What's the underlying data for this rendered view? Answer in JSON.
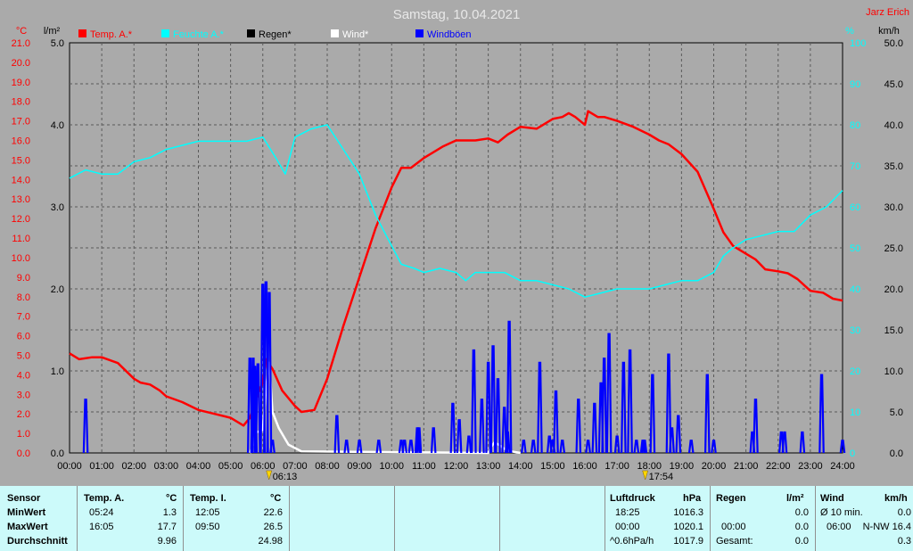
{
  "chart_data": {
    "type": "line",
    "title": "Samstag, 10.04.2021",
    "author": "Jarz Erich",
    "left_units": [
      "°C",
      "l/m²"
    ],
    "right_units": [
      "%",
      "km/h"
    ],
    "axes": {
      "temp": {
        "unit": "°C",
        "min": 0,
        "max": 21,
        "ticks": [
          "0.0",
          "1.0",
          "2.0",
          "3.0",
          "4.0",
          "5.0",
          "6.0",
          "7.0",
          "8.0",
          "9.0",
          "10.0",
          "11.0",
          "12.0",
          "13.0",
          "14.0",
          "15.0",
          "16.0",
          "17.0",
          "18.0",
          "19.0",
          "20.0",
          "21.0"
        ]
      },
      "rain": {
        "unit": "l/m²",
        "min": 0,
        "max": 5,
        "ticks": [
          "0.0",
          "1.0",
          "2.0",
          "3.0",
          "4.0",
          "5.0"
        ]
      },
      "humidity": {
        "unit": "%",
        "min": 0,
        "max": 100,
        "ticks": [
          "0",
          "10",
          "20",
          "30",
          "40",
          "50",
          "60",
          "70",
          "80",
          "90",
          "100"
        ]
      },
      "wind": {
        "unit": "km/h",
        "min": 0,
        "max": 50,
        "ticks": [
          "0.0",
          "5.0",
          "10.0",
          "15.0",
          "20.0",
          "25.0",
          "30.0",
          "35.0",
          "40.0",
          "45.0",
          "50.0"
        ]
      }
    },
    "x_ticks": [
      "00:00",
      "01:00",
      "02:00",
      "03:00",
      "04:00",
      "05:00",
      "06:00",
      "07:00",
      "08:00",
      "09:00",
      "10:00",
      "11:00",
      "12:00",
      "13:00",
      "14:00",
      "15:00",
      "16:00",
      "17:00",
      "18:00",
      "19:00",
      "20:00",
      "21:00",
      "22:00",
      "23:00",
      "24:00"
    ],
    "x_range_hours": [
      0,
      24
    ],
    "grid": true,
    "legend": [
      {
        "label": "Temp. A.*",
        "color": "#ff0000"
      },
      {
        "label": "Feuchte A.*",
        "color": "#00ffff"
      },
      {
        "label": "Regen*",
        "color": "#000000"
      },
      {
        "label": "Wind*",
        "color": "#ffffff"
      },
      {
        "label": "Windböen",
        "color": "#0000ff"
      }
    ],
    "annotations": {
      "sunrise": "06:13",
      "sunset": "17:54",
      "sunrise_hour": 6.22,
      "sunset_hour": 17.9
    },
    "series": [
      {
        "name": "Temp. A.*",
        "axis": "temp",
        "color": "#ff0000",
        "x": [
          0,
          0.3,
          0.7,
          1.0,
          1.5,
          2.0,
          2.2,
          2.5,
          2.8,
          3.0,
          3.5,
          4.0,
          4.5,
          5.0,
          5.4,
          5.6,
          5.8,
          6.0,
          6.1,
          6.3,
          6.6,
          7.0,
          7.2,
          7.6,
          8.0,
          8.5,
          9.0,
          9.5,
          10.0,
          10.3,
          10.6,
          11.0,
          11.3,
          11.6,
          12.0,
          12.3,
          12.6,
          13.0,
          13.3,
          13.6,
          14.0,
          14.5,
          15.0,
          15.3,
          15.5,
          15.7,
          16.0,
          16.1,
          16.4,
          16.6,
          17.0,
          17.5,
          18.0,
          18.3,
          18.6,
          19.0,
          19.5,
          20.0,
          20.3,
          20.6,
          21.0,
          21.3,
          21.6,
          22.0,
          22.3,
          22.6,
          23.0,
          23.4,
          23.7,
          24.0
        ],
        "y": [
          5.1,
          4.8,
          4.9,
          4.9,
          4.6,
          3.8,
          3.6,
          3.5,
          3.2,
          2.9,
          2.6,
          2.2,
          2.0,
          1.8,
          1.4,
          1.8,
          2.8,
          3.6,
          4.8,
          4.3,
          3.2,
          2.4,
          2.1,
          2.2,
          3.8,
          6.5,
          9.0,
          11.5,
          13.6,
          14.6,
          14.6,
          15.1,
          15.4,
          15.7,
          16.0,
          16.0,
          16.0,
          16.1,
          15.9,
          16.3,
          16.7,
          16.6,
          17.1,
          17.2,
          17.4,
          17.2,
          16.8,
          17.5,
          17.2,
          17.2,
          17.0,
          16.7,
          16.3,
          16.0,
          15.8,
          15.3,
          14.4,
          12.5,
          11.3,
          10.6,
          10.2,
          9.9,
          9.4,
          9.3,
          9.2,
          8.9,
          8.3,
          8.2,
          7.9,
          7.8
        ]
      },
      {
        "name": "Feuchte A.*",
        "axis": "humidity",
        "color": "#00ffff",
        "x": [
          0,
          0.5,
          1.0,
          1.5,
          2.0,
          2.5,
          3.0,
          3.5,
          4.0,
          4.5,
          5.0,
          5.5,
          6.0,
          6.4,
          6.7,
          7.0,
          7.5,
          8.0,
          8.5,
          9.0,
          9.5,
          9.9,
          10.3,
          10.7,
          11.0,
          11.5,
          12.0,
          12.3,
          12.6,
          13.0,
          13.5,
          14.0,
          14.5,
          15.0,
          15.5,
          16.0,
          16.5,
          17.0,
          17.5,
          18.0,
          18.5,
          19.0,
          19.5,
          20.0,
          20.3,
          20.6,
          21.0,
          21.5,
          22.0,
          22.5,
          23.0,
          23.5,
          24.0
        ],
        "y": [
          67,
          69,
          68,
          68,
          71,
          72,
          74,
          75,
          76,
          76,
          76,
          76,
          77,
          72,
          68,
          77,
          79,
          80,
          74,
          68,
          58,
          52,
          46,
          45,
          44,
          45,
          44,
          42,
          44,
          44,
          44,
          42,
          42,
          41,
          40,
          38,
          39,
          40,
          40,
          40,
          41,
          42,
          42,
          44,
          48,
          50,
          52,
          53,
          54,
          54,
          58,
          60,
          64
        ]
      },
      {
        "name": "Wind*",
        "axis": "wind",
        "color": "#ffffff",
        "x": [
          5.6,
          5.7,
          5.8,
          6.0,
          6.1,
          6.2,
          6.3,
          6.5,
          6.8,
          7.2,
          13.0,
          13.1,
          13.2,
          13.4,
          13.5,
          13.7,
          14.0
        ],
        "y": [
          0,
          1,
          2.5,
          2.8,
          8,
          11,
          5,
          3,
          1,
          0.2,
          0,
          0.8,
          1.3,
          0.8,
          0.5,
          0.2,
          0
        ]
      },
      {
        "name": "Windböen",
        "axis": "wind",
        "color": "#0000ff",
        "spikes": [
          [
            0.5,
            6.5
          ],
          [
            5.6,
            11.5
          ],
          [
            5.7,
            11.5
          ],
          [
            5.75,
            10.5
          ],
          [
            5.85,
            10.8
          ],
          [
            6.0,
            20.5
          ],
          [
            6.1,
            20.8
          ],
          [
            6.2,
            19.5
          ],
          [
            6.3,
            1.5
          ],
          [
            8.3,
            4.5
          ],
          [
            8.6,
            1.5
          ],
          [
            9.0,
            1.5
          ],
          [
            9.6,
            1.5
          ],
          [
            10.3,
            1.5
          ],
          [
            10.4,
            1.5
          ],
          [
            10.6,
            1.5
          ],
          [
            10.8,
            3.0
          ],
          [
            10.85,
            3.0
          ],
          [
            11.3,
            3.0
          ],
          [
            11.9,
            6.0
          ],
          [
            12.1,
            4.0
          ],
          [
            12.4,
            2.0
          ],
          [
            12.55,
            12.5
          ],
          [
            12.8,
            6.5
          ],
          [
            13.0,
            11.0
          ],
          [
            13.15,
            13.0
          ],
          [
            13.3,
            9.0
          ],
          [
            13.5,
            5.5
          ],
          [
            13.6,
            2.5
          ],
          [
            13.65,
            16.0
          ],
          [
            14.1,
            1.5
          ],
          [
            14.4,
            1.5
          ],
          [
            14.6,
            11.0
          ],
          [
            14.9,
            2.0
          ],
          [
            15.0,
            1.5
          ],
          [
            15.1,
            7.5
          ],
          [
            15.3,
            1.5
          ],
          [
            15.8,
            6.5
          ],
          [
            16.1,
            1.5
          ],
          [
            16.3,
            6.0
          ],
          [
            16.5,
            8.5
          ],
          [
            16.6,
            11.5
          ],
          [
            16.75,
            14.5
          ],
          [
            17.0,
            2.0
          ],
          [
            17.2,
            11.0
          ],
          [
            17.4,
            12.5
          ],
          [
            17.6,
            1.5
          ],
          [
            17.8,
            1.5
          ],
          [
            17.85,
            1.5
          ],
          [
            18.1,
            9.5
          ],
          [
            18.6,
            12.0
          ],
          [
            18.7,
            3.0
          ],
          [
            18.9,
            4.5
          ],
          [
            19.3,
            1.5
          ],
          [
            19.8,
            9.5
          ],
          [
            20.0,
            1.5
          ],
          [
            21.2,
            2.5
          ],
          [
            21.3,
            6.5
          ],
          [
            22.1,
            2.5
          ],
          [
            22.2,
            2.5
          ],
          [
            22.75,
            2.5
          ],
          [
            23.35,
            9.5
          ],
          [
            24.0,
            1.5
          ]
        ]
      }
    ]
  },
  "table": {
    "sensor": {
      "header": "Sensor",
      "rows": [
        "MinWert",
        "MaxWert",
        "Durchschnitt"
      ]
    },
    "temp_a": {
      "header": "Temp. A.",
      "unit": "°C",
      "times": [
        "05:24",
        "16:05",
        ""
      ],
      "values": [
        "1.3",
        "17.7",
        "9.96"
      ]
    },
    "temp_i": {
      "header": "Temp. I.",
      "unit": "°C",
      "times": [
        "12:05",
        "09:50",
        ""
      ],
      "values": [
        "22.6",
        "26.5",
        "24.98"
      ]
    },
    "luftdruck": {
      "header": "Luftdruck",
      "unit": "hPa",
      "times": [
        "18:25",
        "00:00",
        "^0.6hPa/h"
      ],
      "values": [
        "1016.3",
        "1020.1",
        "1017.9"
      ]
    },
    "regen": {
      "header": "Regen",
      "unit": "l/m²",
      "times": [
        "",
        "00:00",
        "Gesamt:"
      ],
      "values": [
        "",
        "0.0",
        "0.0"
      ],
      "row0_value": "0.0"
    },
    "wind": {
      "header": "Wind",
      "unit": "km/h",
      "row0_label": "Ø 10 min.",
      "row0_value": "0.0",
      "row1_time": "06:00",
      "row1_value": "N-NW 16.4",
      "row2_value": "0.3"
    }
  }
}
